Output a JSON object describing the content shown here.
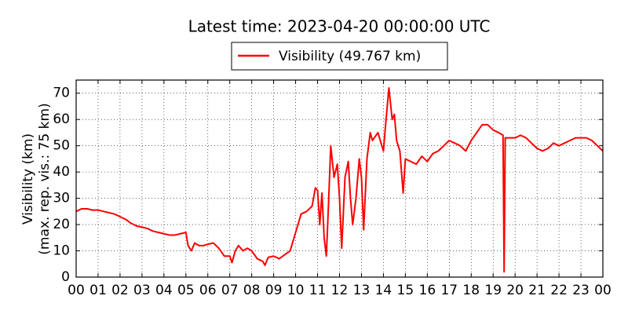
{
  "chart_data": {
    "type": "line",
    "title": "Latest time: 2023-04-20 00:00:00 UTC",
    "y_label": [
      "Visibility (km)",
      "(max. rep. vis.: 75 km)"
    ],
    "x": [
      0,
      0.25,
      0.5,
      0.75,
      1,
      1.25,
      1.5,
      1.75,
      2,
      2.25,
      2.5,
      2.75,
      3,
      3.25,
      3.5,
      3.75,
      4,
      4.25,
      4.5,
      4.75,
      5,
      5.1,
      5.25,
      5.4,
      5.6,
      5.8,
      6,
      6.25,
      6.5,
      6.75,
      7,
      7.1,
      7.25,
      7.4,
      7.6,
      7.8,
      8,
      8.25,
      8.5,
      8.6,
      8.75,
      9,
      9.25,
      9.5,
      9.75,
      10,
      10.25,
      10.5,
      10.75,
      10.9,
      11,
      11.1,
      11.2,
      11.3,
      11.4,
      11.5,
      11.6,
      11.75,
      11.9,
      12,
      12.1,
      12.25,
      12.4,
      12.5,
      12.6,
      12.75,
      12.9,
      13,
      13.1,
      13.25,
      13.4,
      13.5,
      13.75,
      14,
      14.1,
      14.25,
      14.4,
      14.5,
      14.6,
      14.75,
      14.9,
      15,
      15.25,
      15.5,
      15.75,
      16,
      16.25,
      16.5,
      16.75,
      17,
      17.25,
      17.5,
      17.75,
      18,
      18.25,
      18.5,
      18.75,
      19,
      19.25,
      19.45,
      19.5,
      19.55,
      19.75,
      20,
      20.25,
      20.5,
      20.75,
      21,
      21.25,
      21.5,
      21.75,
      22,
      22.25,
      22.5,
      22.75,
      23,
      23.25,
      23.5,
      23.75,
      24
    ],
    "series": [
      {
        "name": "Visibility (49.767 km)",
        "color": "#ff0000",
        "values": [
          25,
          26,
          26,
          25.5,
          25.5,
          25,
          24.5,
          24,
          23,
          22,
          20.5,
          19.5,
          19,
          18.5,
          17.5,
          17,
          16.5,
          16,
          16,
          16.5,
          17,
          12,
          10,
          13,
          12,
          12,
          12.5,
          13,
          11,
          8,
          8,
          5.5,
          10,
          12,
          10,
          11,
          10,
          7,
          6,
          4.5,
          7.5,
          8,
          7,
          8.5,
          10,
          17,
          24,
          25,
          27,
          34,
          33,
          20,
          32,
          15,
          8,
          28,
          50,
          38,
          43,
          30,
          11,
          38,
          44,
          30,
          20,
          30,
          45,
          38,
          18,
          45,
          55,
          52,
          55,
          48,
          58,
          72,
          60,
          62,
          52,
          48,
          32,
          45,
          44,
          43,
          46,
          44,
          47,
          48,
          50,
          52,
          51,
          50,
          48,
          52,
          55,
          58,
          58,
          56,
          55,
          54,
          2,
          53,
          53,
          53,
          54,
          53,
          51,
          49,
          48,
          49,
          51,
          50,
          51,
          52,
          53,
          53,
          53,
          52,
          50,
          48
        ]
      }
    ],
    "xlim": [
      0,
      24
    ],
    "xticks": [
      {
        "value": 0,
        "label": "00"
      },
      {
        "value": 1,
        "label": "01"
      },
      {
        "value": 2,
        "label": "02"
      },
      {
        "value": 3,
        "label": "03"
      },
      {
        "value": 4,
        "label": "04"
      },
      {
        "value": 5,
        "label": "05"
      },
      {
        "value": 6,
        "label": "06"
      },
      {
        "value": 7,
        "label": "07"
      },
      {
        "value": 8,
        "label": "08"
      },
      {
        "value": 9,
        "label": "09"
      },
      {
        "value": 10,
        "label": "10"
      },
      {
        "value": 11,
        "label": "11"
      },
      {
        "value": 12,
        "label": "12"
      },
      {
        "value": 13,
        "label": "13"
      },
      {
        "value": 14,
        "label": "14"
      },
      {
        "value": 15,
        "label": "15"
      },
      {
        "value": 16,
        "label": "16"
      },
      {
        "value": 17,
        "label": "17"
      },
      {
        "value": 18,
        "label": "18"
      },
      {
        "value": 19,
        "label": "19"
      },
      {
        "value": 20,
        "label": "20"
      },
      {
        "value": 21,
        "label": "21"
      },
      {
        "value": 22,
        "label": "22"
      },
      {
        "value": 23,
        "label": "23"
      },
      {
        "value": 24,
        "label": "00"
      }
    ],
    "ylim": [
      0,
      75
    ],
    "yticks": [
      0,
      10,
      20,
      30,
      40,
      50,
      60,
      70
    ],
    "grid": true
  }
}
